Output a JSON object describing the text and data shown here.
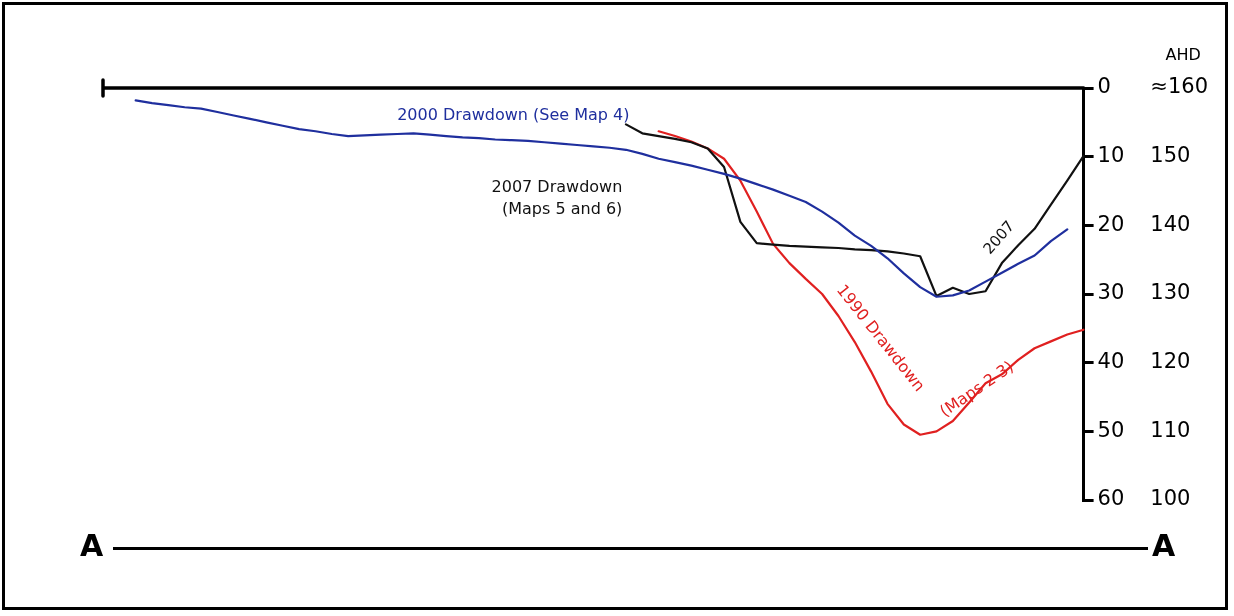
{
  "chart_data": {
    "type": "line",
    "y2label": "AHD",
    "annotations": [
      "A",
      "A",
      "2007"
    ],
    "categories": [
      null,
      null,
      null,
      null,
      null,
      null,
      null,
      null,
      null,
      null,
      null,
      null,
      null,
      null,
      null,
      null,
      null,
      null,
      null,
      null,
      null,
      null,
      null,
      null,
      null,
      null,
      null,
      null,
      null,
      null,
      null,
      null,
      null,
      null,
      null,
      null,
      null,
      null,
      null,
      null,
      null,
      null,
      null,
      null,
      null,
      null,
      null,
      null,
      null,
      null,
      null,
      null,
      null,
      null,
      null,
      null,
      null,
      null,
      null,
      null,
      null
    ],
    "series": [
      {
        "name": "2000 Drawdown (See Map 4)",
        "color": "#1f2f9e",
        "values": [
          null,
          null,
          1.8,
          2.2,
          2.5,
          2.8,
          3.0,
          3.5,
          4.0,
          4.5,
          5.0,
          5.5,
          6.0,
          6.3,
          6.7,
          7.0,
          6.9,
          6.8,
          6.7,
          6.6,
          6.8,
          7.0,
          7.2,
          7.3,
          7.5,
          7.6,
          7.7,
          7.9,
          8.1,
          8.3,
          8.5,
          8.7,
          9.0,
          9.6,
          10.3,
          10.8,
          11.3,
          11.9,
          12.5,
          13.2,
          14.0,
          14.8,
          15.7,
          16.6,
          18.0,
          19.6,
          21.5,
          23.0,
          24.8,
          27.0,
          29.0,
          30.4,
          30.2,
          29.5,
          28.2,
          26.9,
          25.6,
          24.4,
          22.3,
          20.6,
          null
        ]
      },
      {
        "name": "2007 Drawdown (Maps 5 and 6)",
        "color": "#111111",
        "values": [
          null,
          null,
          null,
          null,
          null,
          null,
          null,
          null,
          null,
          null,
          null,
          null,
          null,
          null,
          null,
          null,
          null,
          null,
          null,
          null,
          null,
          null,
          null,
          null,
          null,
          null,
          null,
          null,
          null,
          null,
          null,
          null,
          5.3,
          6.6,
          7.0,
          7.4,
          7.9,
          8.8,
          11.5,
          19.5,
          22.6,
          22.8,
          23.0,
          23.1,
          23.2,
          23.3,
          23.5,
          23.6,
          23.8,
          24.1,
          24.5,
          30.3,
          29.1,
          30.0,
          29.6,
          25.5,
          22.9,
          20.5,
          17.0,
          13.5,
          9.9
        ]
      },
      {
        "name": "1990 Drawdown (Maps 2 3)",
        "color": "#e02020",
        "values": [
          null,
          null,
          null,
          null,
          null,
          null,
          null,
          null,
          null,
          null,
          null,
          null,
          null,
          null,
          null,
          null,
          null,
          null,
          null,
          null,
          null,
          null,
          null,
          null,
          null,
          null,
          null,
          null,
          null,
          null,
          null,
          null,
          null,
          null,
          6.3,
          7.0,
          7.8,
          8.8,
          10.3,
          13.5,
          18.0,
          22.7,
          25.5,
          27.8,
          30.0,
          33.2,
          37.0,
          41.3,
          46.0,
          49.0,
          50.5,
          50.0,
          48.5,
          45.8,
          43.0,
          41.7,
          39.6,
          37.9,
          36.9,
          35.9,
          35.2
        ]
      }
    ],
    "ylim": [
      60,
      0
    ],
    "yticks": [
      0,
      10,
      20,
      30,
      40,
      50,
      60
    ],
    "y2lim": [
      100,
      160
    ],
    "y2ticks": [
      100,
      110,
      120,
      130,
      140,
      150,
      {
        "value": 160,
        "label": "≈160"
      }
    ],
    "ref_lines": [
      {
        "axis": "y",
        "value": 0,
        "color": "#000000"
      }
    ],
    "grid": false,
    "legend": false,
    "marker": "none",
    "line_style": "solid",
    "tick_labels": "y"
  }
}
